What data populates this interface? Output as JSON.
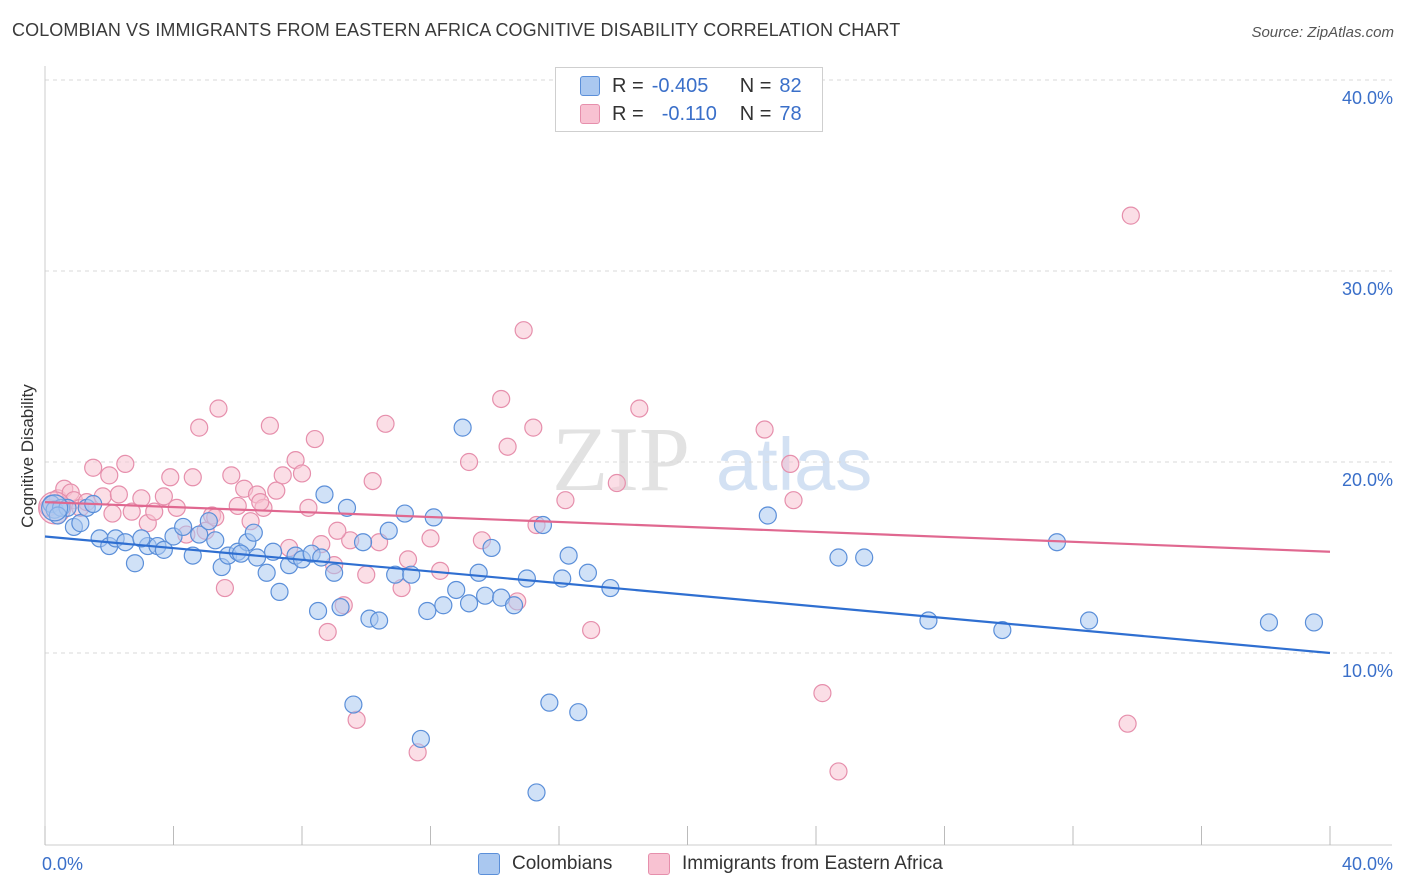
{
  "title": "COLOMBIAN VS IMMIGRANTS FROM EASTERN AFRICA COGNITIVE DISABILITY CORRELATION CHART",
  "source": "Source: ZipAtlas.com",
  "watermark": {
    "zip": "ZIP",
    "atlas": "atlas"
  },
  "legend": {
    "rows": [
      {
        "r_label": "R =",
        "r_value": "-0.405",
        "n_label": "N =",
        "n_value": "82"
      },
      {
        "r_label": "R =",
        "r_value": "-0.110",
        "n_label": "N =",
        "n_value": "78"
      }
    ]
  },
  "colors": {
    "blue_fill": "#aac8f0",
    "blue_stroke": "#5b8fd9",
    "blue_line": "#2f6fd1",
    "pink_fill": "#f8c2d2",
    "pink_stroke": "#e68fac",
    "pink_line": "#e06890",
    "tick_label": "#3a6fc9",
    "grid": "#d9d9d9"
  },
  "chart_data": {
    "type": "scatter",
    "title": "COLOMBIAN VS IMMIGRANTS FROM EASTERN AFRICA COGNITIVE DISABILITY CORRELATION CHART",
    "xlabel": "",
    "ylabel": "Cognitive Disability",
    "xlim": [
      0,
      40
    ],
    "ylim": [
      0,
      40
    ],
    "x_tick_labels": [
      "0.0%",
      "40.0%"
    ],
    "y_ticks": [
      10,
      20,
      30,
      40
    ],
    "y_tick_labels": [
      "10.0%",
      "20.0%",
      "30.0%",
      "40.0%"
    ],
    "grid": "horizontal dashed",
    "legend_placement": "top-center",
    "series": [
      {
        "name": "Colombians",
        "color": "blue",
        "trend": {
          "x": [
            0,
            40
          ],
          "y": [
            16.1,
            10.0
          ]
        },
        "points": [
          [
            0.2,
            17.8
          ],
          [
            0.3,
            17.5
          ],
          [
            0.5,
            17.6
          ],
          [
            0.7,
            17.6
          ],
          [
            0.9,
            16.6
          ],
          [
            1.1,
            16.8
          ],
          [
            1.3,
            17.6
          ],
          [
            1.5,
            17.8
          ],
          [
            1.7,
            16.0
          ],
          [
            2.0,
            15.6
          ],
          [
            2.2,
            16.0
          ],
          [
            2.5,
            15.8
          ],
          [
            2.8,
            14.7
          ],
          [
            3.2,
            15.6
          ],
          [
            3.5,
            15.6
          ],
          [
            3.7,
            15.4
          ],
          [
            4.0,
            16.1
          ],
          [
            4.3,
            16.6
          ],
          [
            4.6,
            15.1
          ],
          [
            4.8,
            16.2
          ],
          [
            5.1,
            16.9
          ],
          [
            5.3,
            15.9
          ],
          [
            5.5,
            14.5
          ],
          [
            5.7,
            15.1
          ],
          [
            6.0,
            15.3
          ],
          [
            6.3,
            15.8
          ],
          [
            6.5,
            16.3
          ],
          [
            6.6,
            15.0
          ],
          [
            6.9,
            14.2
          ],
          [
            7.1,
            15.3
          ],
          [
            7.3,
            13.2
          ],
          [
            7.6,
            14.6
          ],
          [
            7.8,
            15.1
          ],
          [
            8.0,
            14.9
          ],
          [
            8.3,
            15.2
          ],
          [
            8.5,
            12.2
          ],
          [
            8.7,
            18.3
          ],
          [
            9.0,
            14.2
          ],
          [
            9.2,
            12.4
          ],
          [
            9.4,
            17.6
          ],
          [
            9.6,
            7.3
          ],
          [
            9.9,
            15.8
          ],
          [
            10.1,
            11.8
          ],
          [
            10.4,
            11.7
          ],
          [
            10.7,
            16.4
          ],
          [
            10.9,
            14.1
          ],
          [
            11.2,
            17.3
          ],
          [
            11.4,
            14.1
          ],
          [
            11.7,
            5.5
          ],
          [
            11.9,
            12.2
          ],
          [
            12.1,
            17.1
          ],
          [
            12.4,
            12.5
          ],
          [
            12.8,
            13.3
          ],
          [
            13.0,
            21.8
          ],
          [
            13.2,
            12.6
          ],
          [
            13.5,
            14.2
          ],
          [
            13.7,
            13.0
          ],
          [
            13.9,
            15.5
          ],
          [
            14.2,
            12.9
          ],
          [
            14.6,
            12.5
          ],
          [
            15.0,
            13.9
          ],
          [
            15.3,
            2.7
          ],
          [
            15.5,
            16.7
          ],
          [
            15.7,
            7.4
          ],
          [
            16.1,
            13.9
          ],
          [
            16.3,
            15.1
          ],
          [
            16.6,
            6.9
          ],
          [
            16.9,
            14.2
          ],
          [
            17.6,
            13.4
          ],
          [
            22.5,
            17.2
          ],
          [
            24.7,
            15.0
          ],
          [
            25.5,
            15.0
          ],
          [
            27.5,
            11.7
          ],
          [
            29.8,
            11.2
          ],
          [
            31.5,
            15.8
          ],
          [
            32.5,
            11.7
          ],
          [
            39.5,
            11.6
          ],
          [
            38.1,
            11.6
          ],
          [
            0.4,
            17.2
          ],
          [
            3.0,
            16.0
          ],
          [
            6.1,
            15.2
          ],
          [
            8.6,
            15.0
          ]
        ]
      },
      {
        "name": "Immigrants from Eastern Africa",
        "color": "pink",
        "trend": {
          "x": [
            0,
            40
          ],
          "y": [
            17.9,
            15.3
          ]
        },
        "points": [
          [
            0.1,
            17.6
          ],
          [
            0.4,
            18.1
          ],
          [
            0.6,
            18.6
          ],
          [
            0.8,
            18.4
          ],
          [
            0.9,
            18.0
          ],
          [
            1.1,
            17.6
          ],
          [
            1.3,
            17.9
          ],
          [
            1.5,
            19.7
          ],
          [
            1.8,
            18.2
          ],
          [
            2.0,
            19.3
          ],
          [
            2.3,
            18.3
          ],
          [
            2.5,
            19.9
          ],
          [
            2.7,
            17.4
          ],
          [
            3.0,
            18.1
          ],
          [
            3.2,
            16.8
          ],
          [
            3.4,
            17.4
          ],
          [
            3.7,
            18.2
          ],
          [
            3.9,
            19.2
          ],
          [
            4.1,
            17.6
          ],
          [
            4.4,
            16.2
          ],
          [
            4.6,
            19.2
          ],
          [
            4.8,
            21.8
          ],
          [
            5.0,
            16.4
          ],
          [
            5.2,
            17.2
          ],
          [
            5.4,
            22.8
          ],
          [
            5.6,
            13.4
          ],
          [
            5.8,
            19.3
          ],
          [
            6.0,
            17.7
          ],
          [
            6.2,
            18.6
          ],
          [
            6.4,
            16.9
          ],
          [
            6.6,
            18.3
          ],
          [
            6.8,
            17.6
          ],
          [
            7.0,
            21.9
          ],
          [
            7.2,
            18.5
          ],
          [
            7.4,
            19.3
          ],
          [
            7.6,
            15.5
          ],
          [
            7.8,
            20.1
          ],
          [
            8.0,
            19.4
          ],
          [
            8.2,
            17.6
          ],
          [
            8.4,
            21.2
          ],
          [
            8.6,
            15.7
          ],
          [
            8.8,
            11.1
          ],
          [
            9.0,
            14.6
          ],
          [
            9.3,
            12.5
          ],
          [
            9.5,
            15.9
          ],
          [
            9.7,
            6.5
          ],
          [
            10.0,
            14.1
          ],
          [
            10.2,
            19.0
          ],
          [
            10.4,
            15.8
          ],
          [
            10.6,
            22.0
          ],
          [
            11.1,
            13.4
          ],
          [
            11.3,
            14.9
          ],
          [
            11.6,
            4.8
          ],
          [
            12.3,
            14.3
          ],
          [
            13.2,
            20.0
          ],
          [
            13.6,
            15.9
          ],
          [
            14.2,
            23.3
          ],
          [
            14.4,
            20.8
          ],
          [
            14.7,
            12.7
          ],
          [
            14.9,
            26.9
          ],
          [
            15.2,
            21.8
          ],
          [
            15.3,
            16.7
          ],
          [
            16.2,
            18.0
          ],
          [
            17.0,
            11.2
          ],
          [
            17.8,
            18.9
          ],
          [
            18.5,
            22.8
          ],
          [
            22.4,
            21.7
          ],
          [
            23.2,
            19.9
          ],
          [
            23.3,
            18.0
          ],
          [
            24.2,
            7.9
          ],
          [
            24.7,
            3.8
          ],
          [
            33.8,
            32.9
          ],
          [
            33.7,
            6.3
          ],
          [
            2.1,
            17.3
          ],
          [
            5.3,
            17.1
          ],
          [
            9.1,
            16.4
          ],
          [
            12.0,
            16.0
          ],
          [
            6.7,
            17.9
          ]
        ]
      }
    ]
  },
  "bottom_legend": [
    "Colombians",
    "Immigrants from Eastern Africa"
  ]
}
